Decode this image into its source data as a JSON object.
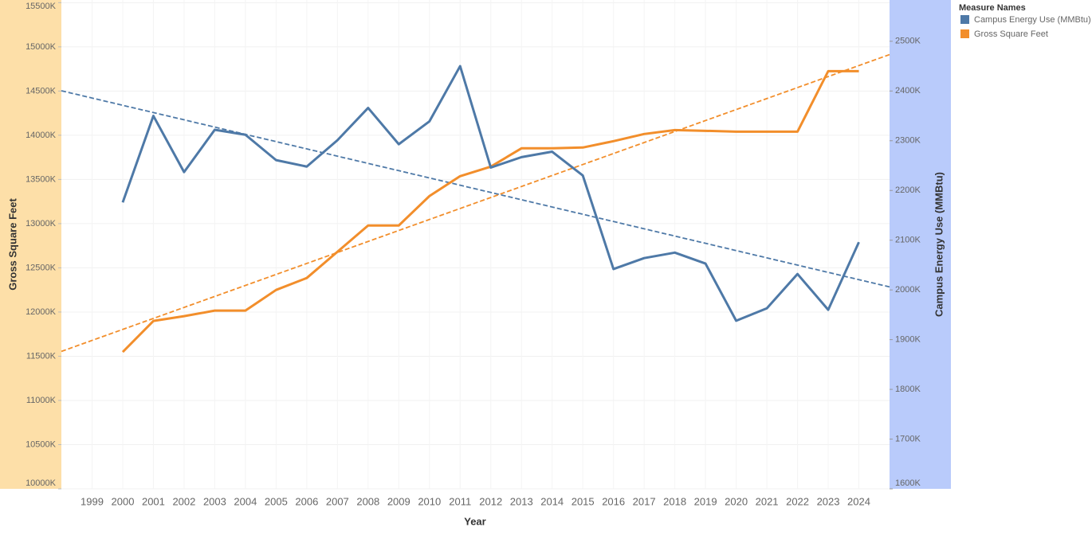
{
  "chart_data": {
    "type": "line",
    "x_label": "Year",
    "y_label": "Gross Square Feet",
    "y2_label": "Campus Energy Use (MMBtu)",
    "legend_title": "Measure Names",
    "legend": "top-right",
    "grid": true,
    "trend_lines": true,
    "x": [
      2000,
      2001,
      2002,
      2003,
      2004,
      2005,
      2006,
      2007,
      2008,
      2009,
      2010,
      2011,
      2012,
      2013,
      2014,
      2015,
      2016,
      2017,
      2018,
      2019,
      2020,
      2021,
      2022,
      2023,
      2024
    ],
    "xlim": [
      1998,
      2025
    ],
    "xticks": [
      1999,
      2000,
      2001,
      2002,
      2003,
      2004,
      2005,
      2006,
      2007,
      2008,
      2009,
      2010,
      2011,
      2012,
      2013,
      2014,
      2015,
      2016,
      2017,
      2018,
      2019,
      2020,
      2021,
      2022,
      2023,
      2024
    ],
    "ylim": [
      10000000,
      15530000
    ],
    "yticks": [
      {
        "value": 10000000,
        "label": "10000K"
      },
      {
        "value": 10500000,
        "label": "10500K"
      },
      {
        "value": 11000000,
        "label": "11000K"
      },
      {
        "value": 11500000,
        "label": "11500K"
      },
      {
        "value": 12000000,
        "label": "12000K"
      },
      {
        "value": 12500000,
        "label": "12500K"
      },
      {
        "value": 13000000,
        "label": "13000K"
      },
      {
        "value": 13500000,
        "label": "13500K"
      },
      {
        "value": 14000000,
        "label": "14000K"
      },
      {
        "value": 14500000,
        "label": "14500K"
      },
      {
        "value": 15000000,
        "label": "15000K"
      },
      {
        "value": 15500000,
        "label": "15500K"
      }
    ],
    "y2lim": [
      1600000,
      2583000
    ],
    "y2ticks": [
      {
        "value": 1600000,
        "label": "1600K"
      },
      {
        "value": 1700000,
        "label": "1700K"
      },
      {
        "value": 1800000,
        "label": "1800K"
      },
      {
        "value": 1900000,
        "label": "1900K"
      },
      {
        "value": 2000000,
        "label": "2000K"
      },
      {
        "value": 2100000,
        "label": "2100K"
      },
      {
        "value": 2200000,
        "label": "2200K"
      },
      {
        "value": 2300000,
        "label": "2300K"
      },
      {
        "value": 2400000,
        "label": "2400K"
      },
      {
        "value": 2500000,
        "label": "2500K"
      }
    ],
    "series": [
      {
        "name": "Campus Energy Use (MMBtu)",
        "color": "#4e79a7",
        "axis": "y2",
        "values": [
          2176000,
          2350000,
          2237000,
          2322000,
          2312000,
          2261000,
          2248000,
          2301000,
          2366000,
          2293000,
          2339000,
          2450000,
          2246000,
          2267000,
          2278000,
          2230000,
          2042000,
          2064000,
          2075000,
          2053000,
          1938000,
          1963000,
          2032000,
          1960000,
          2096000
        ]
      },
      {
        "name": "Gross Square Feet",
        "color": "#f28e2b",
        "values": [
          11548000,
          11899000,
          11953000,
          12016000,
          12016000,
          12250000,
          12385000,
          12682000,
          12979000,
          12979000,
          13312000,
          13537000,
          13645000,
          13852000,
          13852000,
          13861000,
          13933000,
          14014000,
          14059000,
          14050000,
          14041000,
          14041000,
          14041000,
          14725000,
          14725000
        ]
      }
    ]
  }
}
